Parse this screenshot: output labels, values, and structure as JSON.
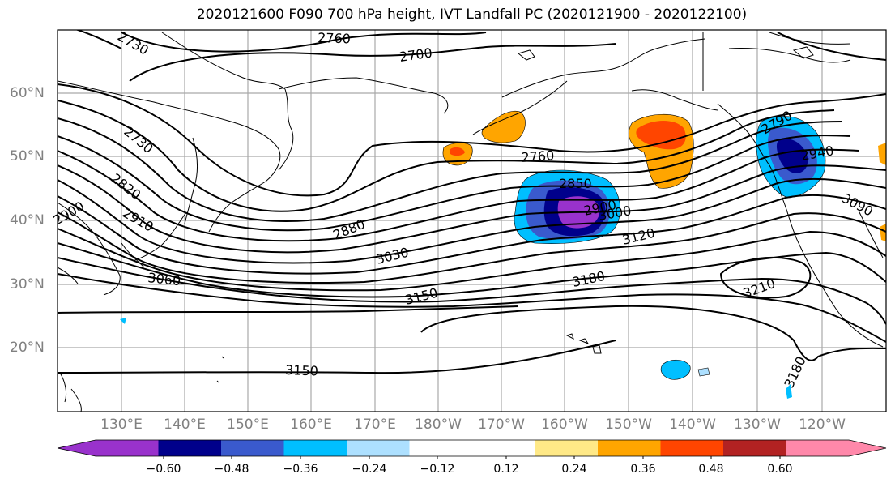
{
  "title": "2020121600 F090 700 hPa height, IVT Landfall PC (2020121900 - 2020122100)",
  "map": {
    "lon_labels": [
      "130°E",
      "140°E",
      "150°E",
      "160°E",
      "170°E",
      "180°W",
      "170°W",
      "160°W",
      "150°W",
      "140°W",
      "130°W",
      "120°W"
    ],
    "lat_labels": [
      "60°N",
      "50°N",
      "40°N",
      "30°N",
      "20°N"
    ],
    "contour_labels": [
      "2760",
      "2700",
      "2730",
      "2730",
      "2760",
      "2820",
      "2910",
      "2880",
      "2850",
      "2900",
      "2900",
      "3000",
      "3030",
      "3060",
      "3120",
      "3150",
      "3180",
      "3210",
      "2940",
      "3090",
      "3180",
      "3150",
      "2790"
    ]
  },
  "colorbar": {
    "colors": [
      "#9932CC",
      "#00008B",
      "#3A5ACD",
      "#00BFFF",
      "#ADE0FF",
      "#FFFFFF",
      "#FFFFFF",
      "#FFE987",
      "#FFA500",
      "#FF4500",
      "#B22222",
      "#FF88AA"
    ],
    "tick_labels": [
      "−0.60",
      "−0.48",
      "−0.36",
      "−0.24",
      "−0.12",
      "0.12",
      "0.24",
      "0.36",
      "0.48",
      "0.60"
    ]
  },
  "colors": {
    "coast": "#000000",
    "grid": "#A9A9A9",
    "contour": "#000000"
  }
}
